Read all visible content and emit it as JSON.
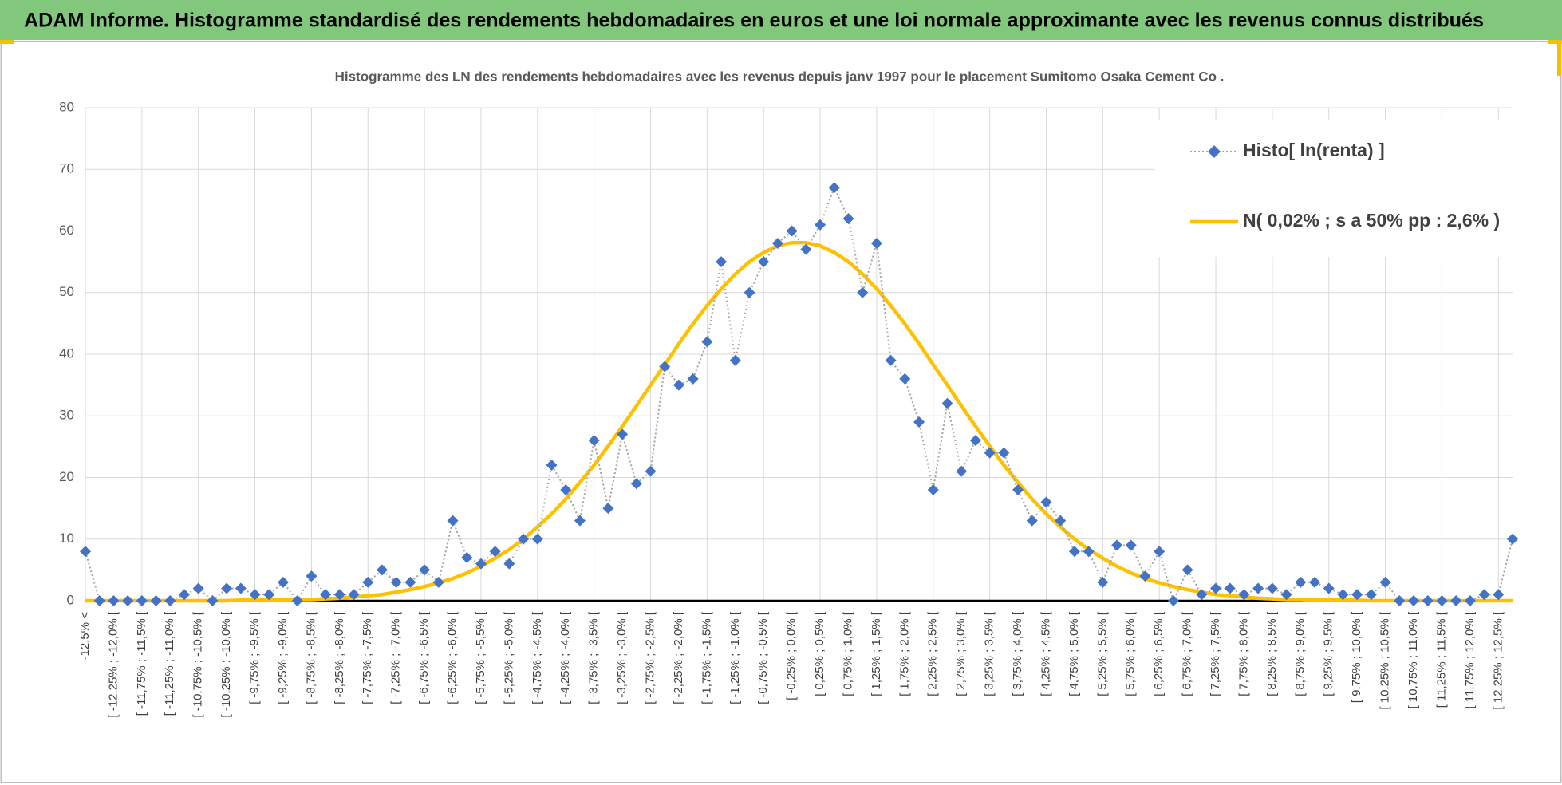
{
  "chart_data": {
    "type": "line",
    "title": "ADAM Informe. Histogramme standardisé des rendements hebdomadaires en euros et une loi normale approximante avec les revenus connus distribués",
    "subtitle": "Histogramme des LN des rendements hebdomadaires avec les revenus depuis janv 1997 pour le placement Sumitomo Osaka Cement Co .",
    "categories": [
      "-12,5% <",
      null,
      "[ -12,25% ; -12,0% [",
      null,
      "[ -11,75% ; -11,5% [",
      null,
      "[ -11,25% ; -11,0% [",
      null,
      "[ -10,75% ; -10,5% [",
      null,
      "[ -10,25% ; -10,0% [",
      null,
      "[ -9,75% ; -9,5% [",
      null,
      "[ -9,25% ; -9,0% [",
      null,
      "[ -8,75% ; -8,5% [",
      null,
      "[ -8,25% ; -8,0% [",
      null,
      "[ -7,75% ; -7,5% [",
      null,
      "[ -7,25% ; -7,0% [",
      null,
      "[ -6,75% ; -6,5% [",
      null,
      "[ -6,25% ; -6,0% [",
      null,
      "[ -5,75% ; -5,5% [",
      null,
      "[ -5,25% ; -5,0% [",
      null,
      "[ -4,75% ; -4,5% [",
      null,
      "[ -4,25% ; -4,0% [",
      null,
      "[ -3,75% ; -3,5% [",
      null,
      "[ -3,25% ; -3,0% [",
      null,
      "[ -2,75% ; -2,5% [",
      null,
      "[ -2,25% ; -2,0% [",
      null,
      "[ -1,75% ; -1,5% [",
      null,
      "[ -1,25% ; -1,0% [",
      null,
      "[ -0,75% ; -0,5% [",
      null,
      "[ -0,25% ; 0,0% [",
      null,
      "[ 0,25% ; 0,5% [",
      null,
      "[ 0,75% ; 1,0% [",
      null,
      "[ 1,25% ; 1,5% [",
      null,
      "[ 1,75% ; 2,0% [",
      null,
      "[ 2,25% ; 2,5% [",
      null,
      "[ 2,75% ; 3,0% [",
      null,
      "[ 3,25% ; 3,5% [",
      null,
      "[ 3,75% ; 4,0% [",
      null,
      "[ 4,25% ; 4,5% [",
      null,
      "[ 4,75% ; 5,0% [",
      null,
      "[ 5,25% ; 5,5% [",
      null,
      "[ 5,75% ; 6,0% [",
      null,
      "[ 6,25% ; 6,5% [",
      null,
      "[ 6,75% ; 7,0% [",
      null,
      "[ 7,25% ; 7,5% [",
      null,
      "[ 7,75% ; 8,0% [",
      null,
      "[ 8,25% ; 8,5% [",
      null,
      "[ 8,75% ; 9,0% [",
      null,
      "[ 9,25% ; 9,5% [",
      null,
      "[ 9,75% ; 10,0% [",
      null,
      "[ 10,25% ; 10,5% [",
      null,
      "[ 10,75% ; 11,0% [",
      null,
      "[ 11,25% ; 11,5% [",
      null,
      "[ 11,75% ; 12,0% [",
      null,
      "[ 12,25% ; 12,5% [",
      null
    ],
    "series": [
      {
        "name": "Histo[ ln(renta) ]",
        "color": "#4472c4",
        "line_color": "#a5a5a5",
        "marker": "diamond",
        "values": [
          8,
          0,
          0,
          0,
          0,
          0,
          0,
          1,
          2,
          0,
          2,
          2,
          1,
          1,
          3,
          0,
          4,
          1,
          1,
          1,
          3,
          5,
          3,
          3,
          5,
          3,
          13,
          7,
          6,
          8,
          6,
          10,
          10,
          22,
          18,
          13,
          26,
          15,
          27,
          19,
          21,
          38,
          35,
          36,
          42,
          55,
          39,
          50,
          55,
          58,
          60,
          57,
          61,
          67,
          62,
          50,
          58,
          39,
          36,
          29,
          18,
          32,
          21,
          26,
          24,
          24,
          18,
          13,
          16,
          13,
          8,
          8,
          3,
          9,
          9,
          4,
          8,
          0,
          5,
          1,
          2,
          2,
          1,
          2,
          2,
          1,
          3,
          3,
          2,
          1,
          1,
          1,
          3,
          0,
          0,
          0,
          0,
          0,
          0,
          1,
          1,
          10
        ]
      },
      {
        "name": "N( 0,02% ; s a 50% pp : 2,6% )",
        "color": "#ffc000",
        "marker": "none",
        "values": [
          0,
          0,
          0,
          0,
          0,
          0,
          0,
          0,
          0,
          0,
          0,
          0.1,
          0.1,
          0.1,
          0.1,
          0.2,
          0.2,
          0.3,
          0.4,
          0.6,
          0.8,
          1.0,
          1.4,
          1.8,
          2.3,
          2.9,
          3.6,
          4.5,
          5.6,
          6.9,
          8.3,
          10.0,
          12.0,
          14.1,
          16.5,
          19.2,
          22.0,
          25.1,
          28.3,
          31.6,
          35.0,
          38.3,
          41.7,
          44.9,
          47.9,
          50.6,
          53.0,
          55.0,
          56.5,
          57.6,
          58.1,
          58.1,
          57.6,
          56.5,
          55.0,
          53.0,
          50.6,
          47.9,
          44.9,
          41.7,
          38.3,
          35.0,
          31.6,
          28.3,
          25.1,
          22.0,
          19.2,
          16.5,
          14.1,
          12.0,
          10.0,
          8.3,
          6.9,
          5.6,
          4.5,
          3.6,
          2.9,
          2.3,
          1.8,
          1.4,
          1.0,
          0.8,
          0.6,
          0.4,
          0.3,
          0.2,
          0.2,
          0.1,
          0.1,
          0.1,
          0.1,
          0,
          0,
          0,
          0,
          0,
          0,
          0,
          0,
          0,
          0,
          0
        ]
      }
    ],
    "ylim": [
      0,
      80
    ],
    "yticks": [
      0,
      10,
      20,
      30,
      40,
      50,
      60,
      70,
      80
    ],
    "grid": true,
    "legend": "top-right"
  }
}
